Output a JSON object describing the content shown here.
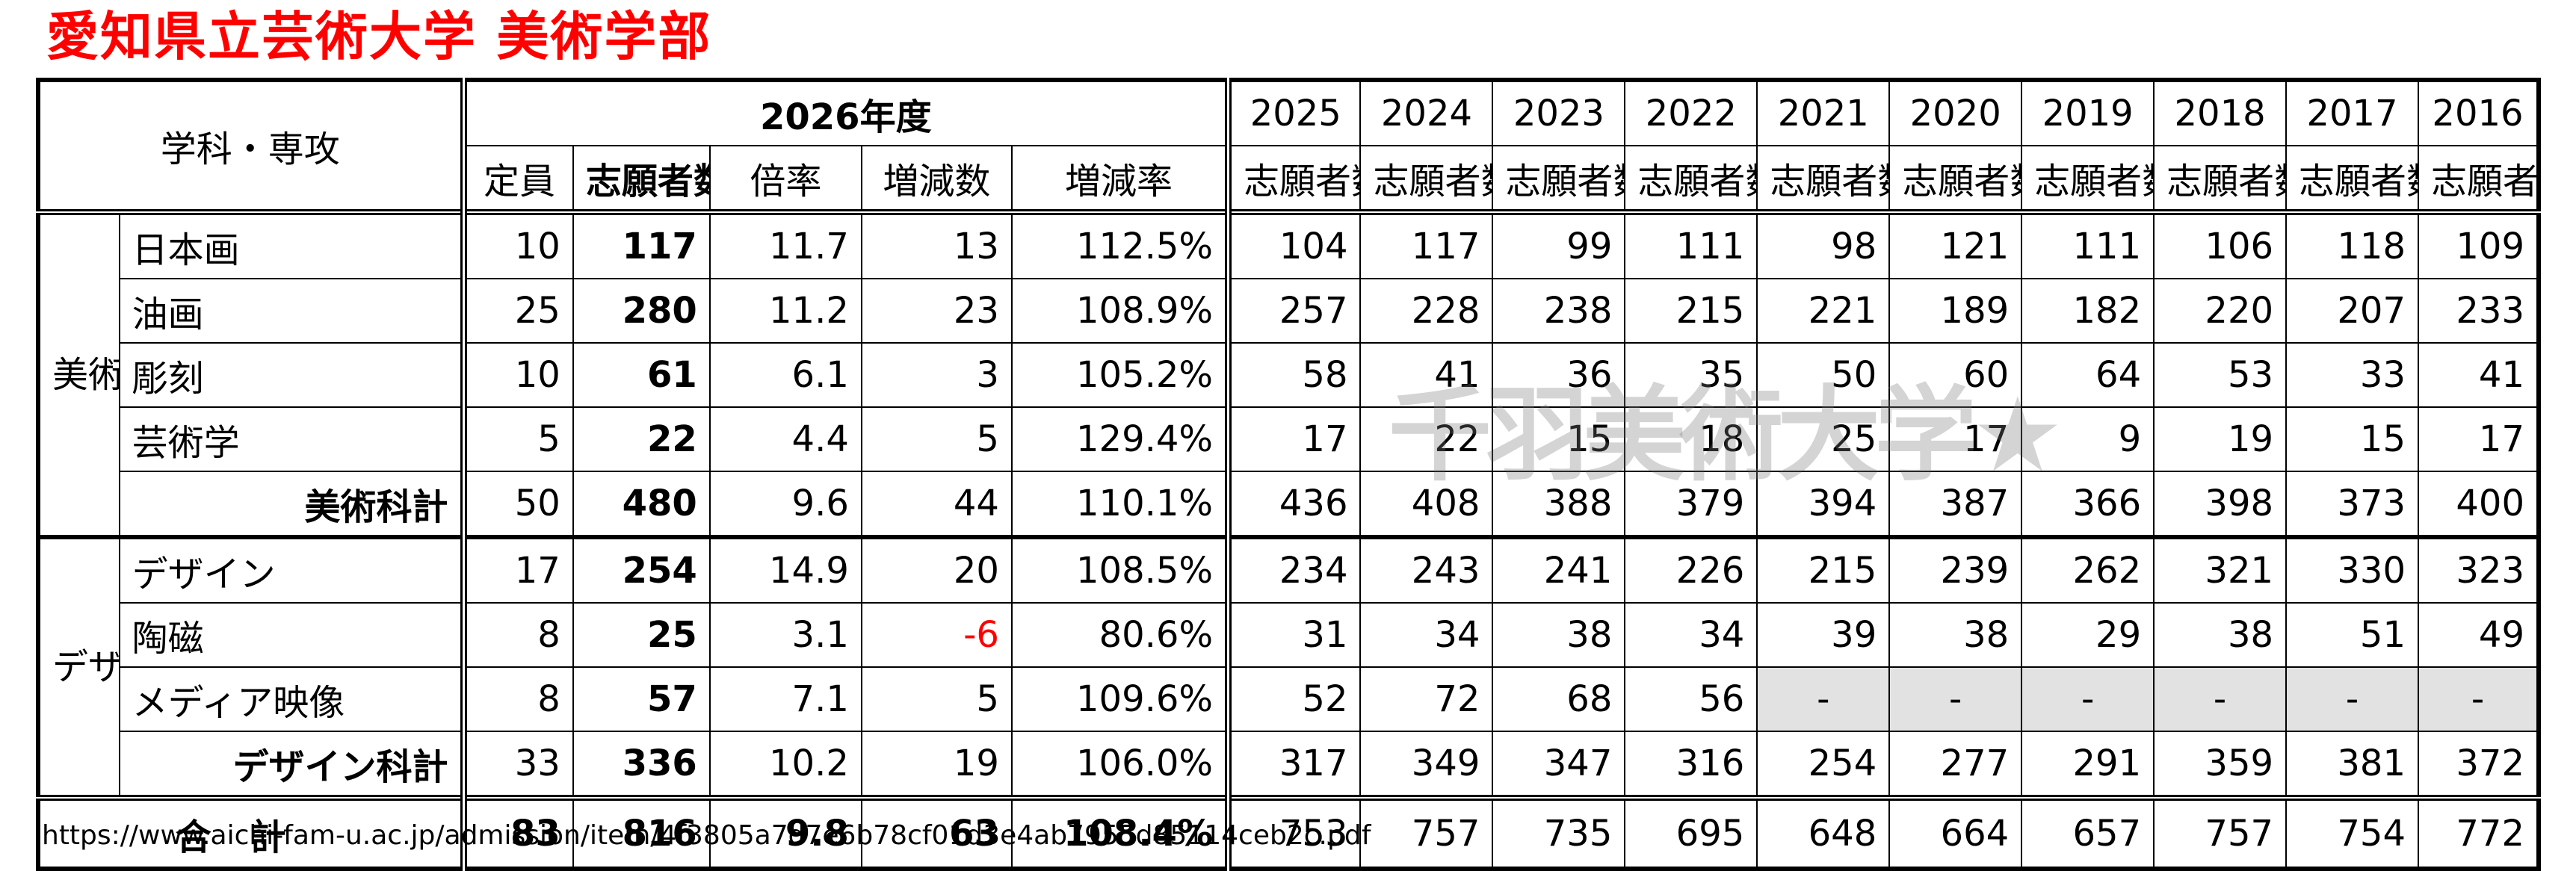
{
  "title": "愛知県立芸術大学 美術学部",
  "source_url": "https://www.aichi-fam-u.ac.jp/admission/item/4f3805a7d7e6b78cf01d3e4ab7955d85114ceb2c.pdf",
  "watermark": "千羽美術大学★",
  "header": {
    "dept_label": "学科・専攻",
    "current_year": "2026年度",
    "sub_teiin": "定員",
    "sub_shigan": "志願者数",
    "sub_bairitsu": "倍率",
    "sub_zougen": "増減数",
    "sub_zougenritsu": "増減率",
    "past_years": [
      "2025",
      "2024",
      "2023",
      "2022",
      "2021",
      "2020",
      "2019",
      "2018",
      "2017",
      "2016"
    ],
    "past_sub": "志願者数"
  },
  "groups": {
    "art": "美術",
    "design": "デザイン"
  },
  "rows": [
    {
      "name": "日本画",
      "teiin": "10",
      "shigan": "117",
      "bairitsu": "11.7",
      "zougen": "13",
      "ritsu": "112.5%",
      "past": [
        "104",
        "117",
        "99",
        "111",
        "98",
        "121",
        "111",
        "106",
        "118",
        "109"
      ]
    },
    {
      "name": "油画",
      "teiin": "25",
      "shigan": "280",
      "bairitsu": "11.2",
      "zougen": "23",
      "ritsu": "108.9%",
      "past": [
        "257",
        "228",
        "238",
        "215",
        "221",
        "189",
        "182",
        "220",
        "207",
        "233"
      ]
    },
    {
      "name": "彫刻",
      "teiin": "10",
      "shigan": "61",
      "bairitsu": "6.1",
      "zougen": "3",
      "ritsu": "105.2%",
      "past": [
        "58",
        "41",
        "36",
        "35",
        "50",
        "60",
        "64",
        "53",
        "33",
        "41"
      ]
    },
    {
      "name": "芸術学",
      "teiin": "5",
      "shigan": "22",
      "bairitsu": "4.4",
      "zougen": "5",
      "ritsu": "129.4%",
      "past": [
        "17",
        "22",
        "15",
        "18",
        "25",
        "17",
        "9",
        "19",
        "15",
        "17"
      ]
    },
    {
      "name": "美術科計",
      "teiin": "50",
      "shigan": "480",
      "bairitsu": "9.6",
      "zougen": "44",
      "ritsu": "110.1%",
      "past": [
        "436",
        "408",
        "388",
        "379",
        "394",
        "387",
        "366",
        "398",
        "373",
        "400"
      ]
    },
    {
      "name": "デザイン",
      "teiin": "17",
      "shigan": "254",
      "bairitsu": "14.9",
      "zougen": "20",
      "ritsu": "108.5%",
      "past": [
        "234",
        "243",
        "241",
        "226",
        "215",
        "239",
        "262",
        "321",
        "330",
        "323"
      ]
    },
    {
      "name": "陶磁",
      "teiin": "8",
      "shigan": "25",
      "bairitsu": "3.1",
      "zougen": "-6",
      "ritsu": "80.6%",
      "past": [
        "31",
        "34",
        "38",
        "34",
        "39",
        "38",
        "29",
        "38",
        "51",
        "49"
      ]
    },
    {
      "name": "メディア映像",
      "teiin": "8",
      "shigan": "57",
      "bairitsu": "7.1",
      "zougen": "5",
      "ritsu": "109.6%",
      "past": [
        "52",
        "72",
        "68",
        "56",
        "-",
        "-",
        "-",
        "-",
        "-",
        "-"
      ]
    },
    {
      "name": "デザイン科計",
      "teiin": "33",
      "shigan": "336",
      "bairitsu": "10.2",
      "zougen": "19",
      "ritsu": "106.0%",
      "past": [
        "317",
        "349",
        "347",
        "316",
        "254",
        "277",
        "291",
        "359",
        "381",
        "372"
      ]
    },
    {
      "name": "合計",
      "teiin": "83",
      "shigan": "816",
      "bairitsu": "9.8",
      "zougen": "63",
      "ritsu": "108.4%",
      "past": [
        "753",
        "757",
        "735",
        "695",
        "648",
        "664",
        "657",
        "757",
        "754",
        "772"
      ]
    }
  ],
  "colors": {
    "title": "#ff0000",
    "negative": "#ff0000",
    "na_fill": "#e2e2e2",
    "watermark": "#787878"
  }
}
